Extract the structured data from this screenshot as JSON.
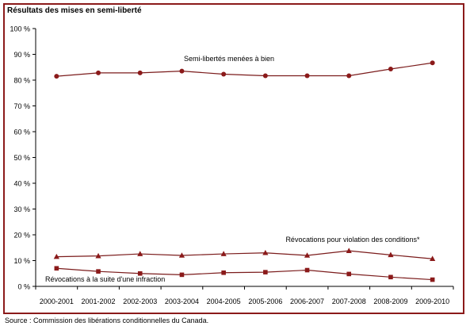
{
  "chart_data": {
    "type": "line",
    "title": "Résultats des mises en semi-liberté",
    "source": "Source : Commission des libérations conditionnelles du Canada.",
    "categories": [
      "2000-2001",
      "2001-2002",
      "2002-2003",
      "2003-2004",
      "2004-2005",
      "2005-2006",
      "2006-2007",
      "2007-2008",
      "2008-2009",
      "2009-2010"
    ],
    "ylim": [
      0,
      100
    ],
    "yticks": [
      "0 %",
      "10 %",
      "20 %",
      "30 %",
      "40 %",
      "50 %",
      "60 %",
      "70 %",
      "80 %",
      "90 %",
      "100 %"
    ],
    "grid": false,
    "series": [
      {
        "name": "Semi-libertés menées à bien",
        "marker": "circle",
        "values": [
          81.5,
          82.8,
          82.8,
          83.5,
          82.3,
          81.7,
          81.7,
          81.7,
          84.3,
          86.7
        ]
      },
      {
        "name": "Révocations pour violation des conditions*",
        "marker": "triangle",
        "values": [
          11.5,
          11.8,
          12.6,
          12.0,
          12.6,
          13.0,
          12.0,
          13.8,
          12.2,
          10.7
        ]
      },
      {
        "name": "Révocations à la suite d'une infraction",
        "marker": "square",
        "values": [
          7.0,
          5.8,
          5.0,
          4.5,
          5.3,
          5.5,
          6.3,
          4.8,
          3.6,
          2.6
        ]
      }
    ],
    "colors": {
      "line": "#7b1c1c",
      "marker": "#8b1a1a",
      "axis": "#000000",
      "frame": "#8b1a1a"
    }
  }
}
